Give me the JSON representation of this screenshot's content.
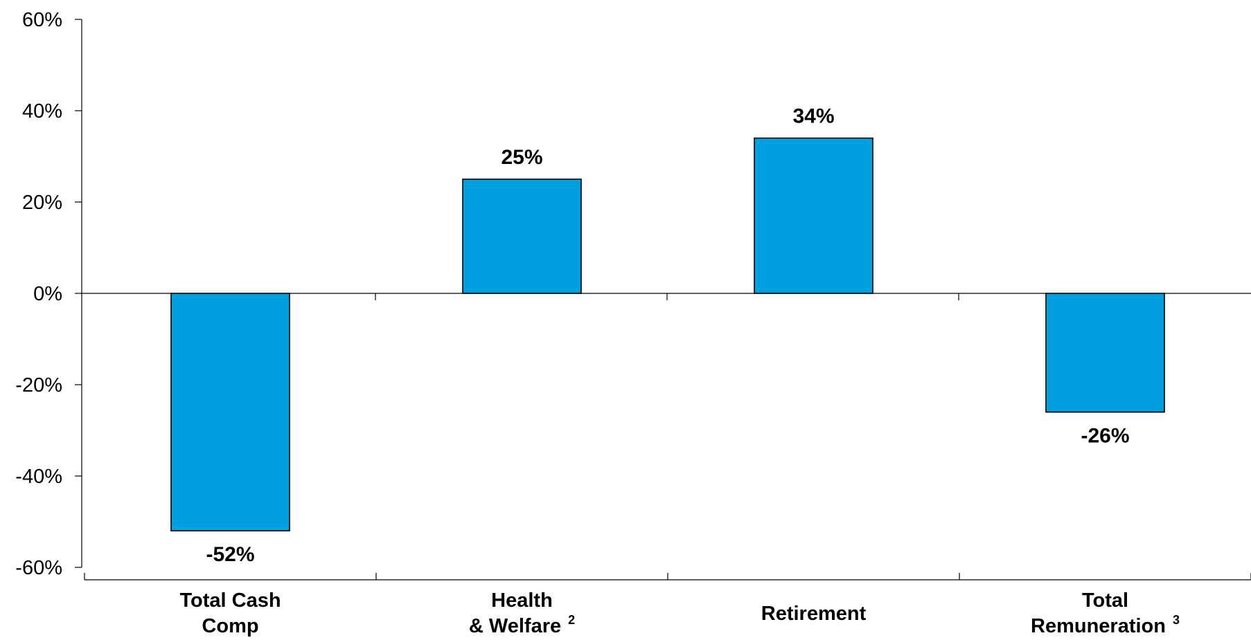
{
  "chart_data": {
    "type": "bar",
    "title": "",
    "xlabel": "",
    "ylabel": "",
    "ylim": [
      -60,
      60
    ],
    "yticks": [
      60,
      40,
      20,
      0,
      -20,
      -40,
      -60
    ],
    "ytick_format": "{v}%",
    "grid": false,
    "legend": "none",
    "bar_color": "#009fe0",
    "bar_edge_color": "#000000",
    "categories": [
      {
        "lines": [
          "Total Cash",
          "Comp"
        ],
        "superscript": ""
      },
      {
        "lines": [
          "Health",
          "& Welfare"
        ],
        "superscript": "2"
      },
      {
        "lines": [
          "Retirement"
        ],
        "superscript": ""
      },
      {
        "lines": [
          "Total",
          "Remuneration"
        ],
        "superscript": "3"
      }
    ],
    "values": [
      -52,
      25,
      34,
      -26
    ],
    "data_labels": [
      "-52%",
      "25%",
      "34%",
      "-26%"
    ]
  }
}
